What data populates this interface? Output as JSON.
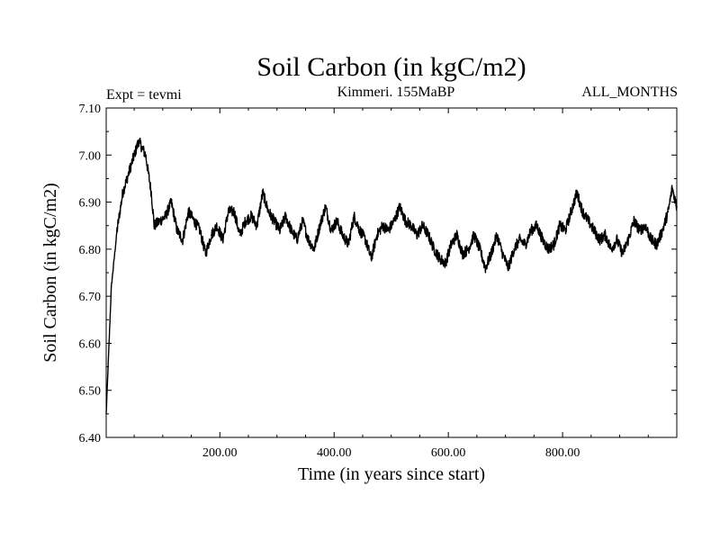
{
  "chart_data": {
    "type": "line",
    "title": "Soil Carbon (in kgC/m2)",
    "subtitle_left": "Expt = tevmi",
    "subtitle_center": "Kimmeri. 155MaBP",
    "subtitle_right": "ALL_MONTHS",
    "xlabel": "Time (in years since start)",
    "ylabel": "Soil Carbon (in kgC/m2)",
    "xlim": [
      1,
      1000
    ],
    "ylim": [
      6.4,
      7.1
    ],
    "xticks": [
      200,
      400,
      600,
      800
    ],
    "xtick_labels": [
      "200.00",
      "400.00",
      "600.00",
      "800.00"
    ],
    "yticks": [
      6.4,
      6.5,
      6.6,
      6.7,
      6.8,
      6.9,
      7.0,
      7.1
    ],
    "ytick_labels": [
      "6.40",
      "6.50",
      "6.60",
      "6.70",
      "6.80",
      "6.90",
      "7.00",
      "7.10"
    ],
    "grid": false,
    "series": [
      {
        "name": "Soil Carbon",
        "color": "#000000",
        "x": [
          1,
          10,
          20,
          30,
          45,
          58,
          70,
          80,
          85,
          95,
          105,
          115,
          125,
          135,
          145,
          155,
          165,
          175,
          185,
          195,
          205,
          215,
          225,
          235,
          245,
          255,
          265,
          275,
          285,
          295,
          305,
          315,
          325,
          335,
          345,
          355,
          365,
          375,
          385,
          395,
          405,
          415,
          425,
          435,
          445,
          455,
          465,
          475,
          485,
          495,
          505,
          515,
          525,
          535,
          545,
          555,
          565,
          575,
          585,
          595,
          605,
          615,
          625,
          635,
          645,
          655,
          665,
          675,
          685,
          695,
          705,
          715,
          725,
          735,
          745,
          755,
          765,
          775,
          785,
          795,
          805,
          815,
          825,
          835,
          845,
          855,
          865,
          875,
          885,
          895,
          905,
          915,
          925,
          935,
          945,
          955,
          965,
          975,
          985,
          992,
          1000
        ],
        "y": [
          6.45,
          6.72,
          6.84,
          6.92,
          6.98,
          7.03,
          7.0,
          6.92,
          6.85,
          6.86,
          6.87,
          6.9,
          6.84,
          6.82,
          6.88,
          6.86,
          6.84,
          6.79,
          6.83,
          6.85,
          6.82,
          6.88,
          6.88,
          6.83,
          6.86,
          6.87,
          6.85,
          6.92,
          6.88,
          6.86,
          6.84,
          6.87,
          6.84,
          6.82,
          6.86,
          6.82,
          6.8,
          6.85,
          6.89,
          6.84,
          6.86,
          6.83,
          6.81,
          6.87,
          6.84,
          6.82,
          6.78,
          6.83,
          6.85,
          6.84,
          6.86,
          6.89,
          6.86,
          6.85,
          6.83,
          6.85,
          6.83,
          6.8,
          6.78,
          6.77,
          6.81,
          6.83,
          6.79,
          6.8,
          6.83,
          6.8,
          6.76,
          6.79,
          6.83,
          6.79,
          6.76,
          6.8,
          6.82,
          6.81,
          6.84,
          6.85,
          6.82,
          6.8,
          6.81,
          6.85,
          6.84,
          6.88,
          6.92,
          6.88,
          6.86,
          6.84,
          6.82,
          6.83,
          6.8,
          6.82,
          6.79,
          6.82,
          6.86,
          6.84,
          6.85,
          6.82,
          6.81,
          6.84,
          6.88,
          6.93,
          6.89
        ]
      }
    ]
  }
}
